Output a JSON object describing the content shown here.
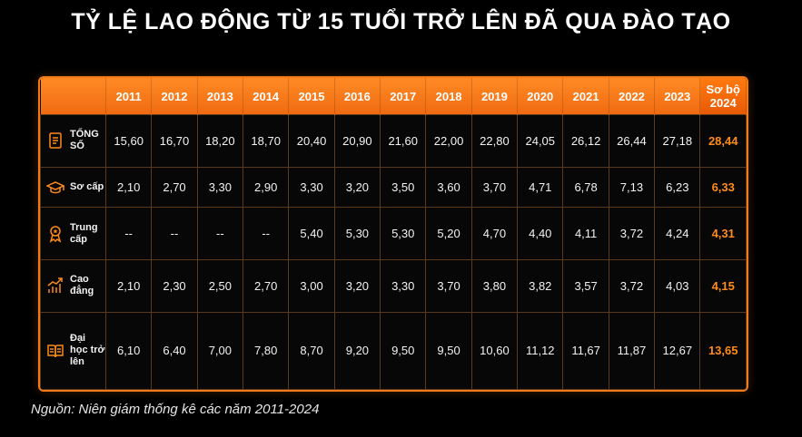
{
  "title": "TỶ LỆ LAO ĐỘNG TỪ 15 TUỔI TRỞ LÊN ĐÃ QUA ĐÀO TẠO",
  "source": "Nguồn: Niên giám thống kê các năm 2011-2024",
  "colors": {
    "accent": "#f07a1a",
    "highlight": "#ff8c1a",
    "background": "#000000"
  },
  "chart_data": {
    "type": "table",
    "title": "TỶ LỆ LAO ĐỘNG TỪ 15 TUỔI TRỞ LÊN ĐÃ QUA ĐÀO TẠO",
    "columns": [
      "2011",
      "2012",
      "2013",
      "2014",
      "2015",
      "2016",
      "2017",
      "2018",
      "2019",
      "2020",
      "2021",
      "2022",
      "2023",
      "Sơ bộ 2024"
    ],
    "rows": [
      {
        "label": "TỔNG SỐ",
        "icon": "document-icon",
        "values": [
          "15,60",
          "16,70",
          "18,20",
          "18,70",
          "20,40",
          "20,90",
          "21,60",
          "22,00",
          "22,80",
          "24,05",
          "26,12",
          "26,44",
          "27,18",
          "28,44"
        ]
      },
      {
        "label": "Sơ cấp",
        "icon": "graduation-cap-icon",
        "values": [
          "2,10",
          "2,70",
          "3,30",
          "2,90",
          "3,30",
          "3,20",
          "3,50",
          "3,60",
          "3,70",
          "4,71",
          "6,78",
          "7,13",
          "6,23",
          "6,33"
        ]
      },
      {
        "label": "Trung cấp",
        "icon": "award-icon",
        "values": [
          "--",
          "--",
          "--",
          "--",
          "5,40",
          "5,30",
          "5,30",
          "5,20",
          "4,70",
          "4,40",
          "4,11",
          "3,72",
          "4,24",
          "4,31"
        ]
      },
      {
        "label": "Cao đẳng",
        "icon": "growth-chart-icon",
        "values": [
          "2,10",
          "2,30",
          "2,50",
          "2,70",
          "3,00",
          "3,20",
          "3,30",
          "3,70",
          "3,80",
          "3,82",
          "3,57",
          "3,72",
          "4,03",
          "4,15"
        ]
      },
      {
        "label": "Đại học trở lên",
        "icon": "book-icon",
        "values": [
          "6,10",
          "6,40",
          "7,00",
          "7,80",
          "8,70",
          "9,20",
          "9,50",
          "9,50",
          "10,60",
          "11,12",
          "11,67",
          "11,87",
          "12,67",
          "13,65"
        ]
      }
    ]
  }
}
